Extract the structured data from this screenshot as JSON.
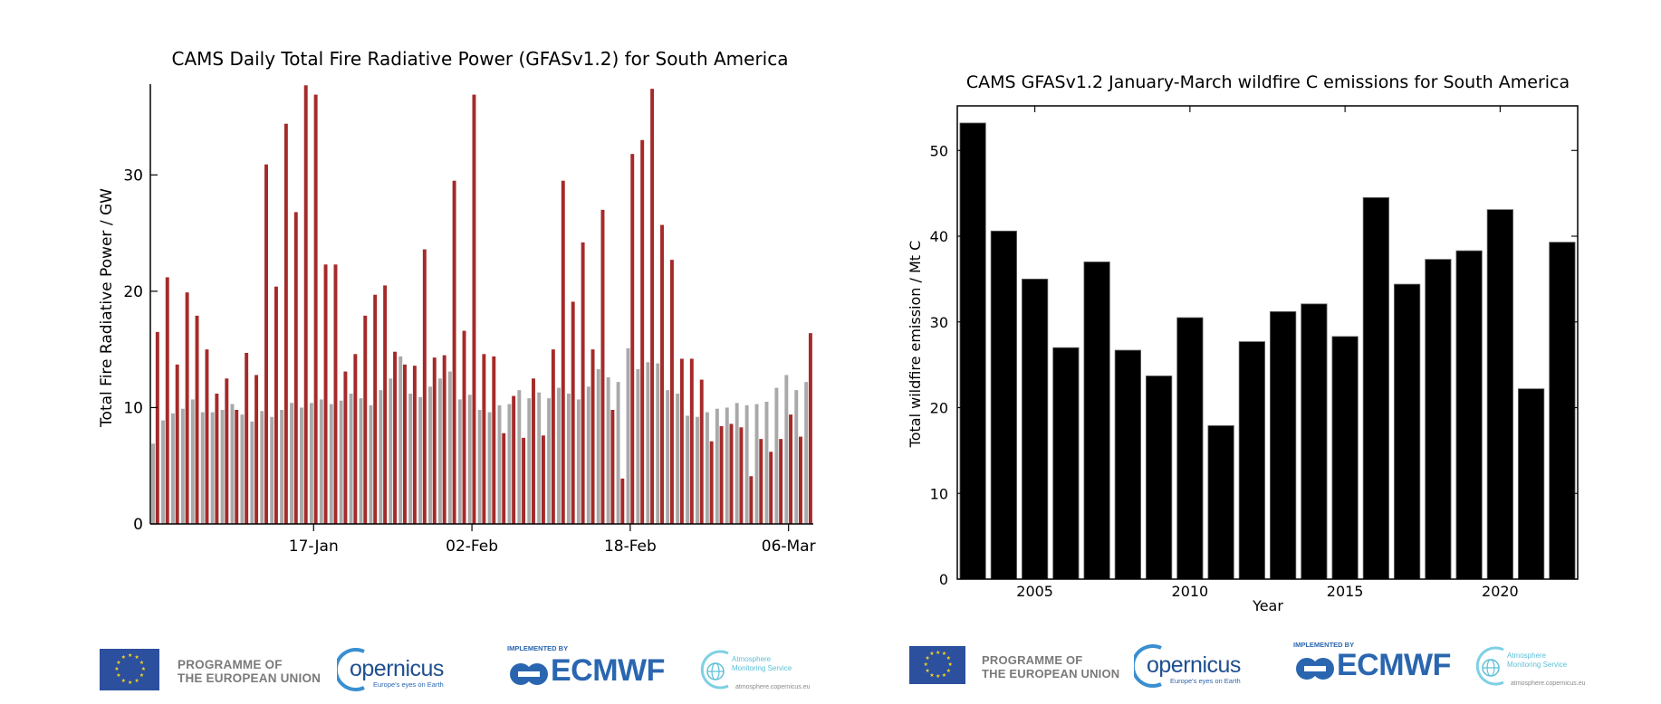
{
  "chart_data": [
    {
      "type": "bar",
      "title": "CAMS Daily Total Fire Radiative Power (GFASv1.2) for South America",
      "xlabel": "",
      "ylabel": "Total Fire Radiative Power / GW",
      "ylim": [
        0,
        37.8
      ],
      "yticks": [
        0,
        10,
        20,
        30
      ],
      "xtick_labels": [
        {
          "day": 17,
          "label": "17-Jan"
        },
        {
          "day": 33,
          "label": "02-Feb"
        },
        {
          "day": 49,
          "label": "18-Feb"
        },
        {
          "day": 65,
          "label": "06-Mar"
        }
      ],
      "grid": false,
      "x_start_day": 1,
      "series": [
        {
          "name": "mean",
          "color": "#a9a9a9",
          "values": [
            6.9,
            8.9,
            9.5,
            9.9,
            10.7,
            9.6,
            9.6,
            9.8,
            10.3,
            9.4,
            8.8,
            9.7,
            9.2,
            9.8,
            10.4,
            10.0,
            10.4,
            10.7,
            10.3,
            10.6,
            11.2,
            10.8,
            10.2,
            11.5,
            12.5,
            14.4,
            11.2,
            10.9,
            11.8,
            12.5,
            13.1,
            10.7,
            11.1,
            9.8,
            9.6,
            10.2,
            10.3,
            11.5,
            10.8,
            11.3,
            10.8,
            11.7,
            11.2,
            10.7,
            11.8,
            13.3,
            12.6,
            12.2,
            15.1,
            13.3,
            13.9,
            13.8,
            11.5,
            11.2,
            9.3,
            9.2,
            9.6,
            9.9,
            10.0,
            10.4,
            10.2,
            10.3,
            10.5,
            11.7,
            12.8,
            11.5,
            12.2
          ]
        },
        {
          "name": "current",
          "color": "#a52a2a",
          "values": [
            16.5,
            21.2,
            13.7,
            19.9,
            17.9,
            15.0,
            11.2,
            12.5,
            9.8,
            14.7,
            12.8,
            30.9,
            20.4,
            34.4,
            26.8,
            37.7,
            36.9,
            22.3,
            22.3,
            13.1,
            14.6,
            17.9,
            19.7,
            20.5,
            14.8,
            13.7,
            13.6,
            23.6,
            14.3,
            14.5,
            29.5,
            16.6,
            36.9,
            14.6,
            14.4,
            7.8,
            11.0,
            7.4,
            12.5,
            7.6,
            15.0,
            29.5,
            19.1,
            24.2,
            15.0,
            27.0,
            9.8,
            3.9,
            31.8,
            33.0,
            37.4,
            25.7,
            22.7,
            14.2,
            14.2,
            12.4,
            7.1,
            8.4,
            8.6,
            8.3,
            4.1,
            7.3,
            6.2,
            7.3,
            9.4,
            7.5,
            16.4
          ]
        }
      ]
    },
    {
      "type": "bar",
      "title": "CAMS GFASv1.2 January-March wildfire C emissions for South America",
      "xlabel": "Year",
      "ylabel": "Total wildfire emission / Mt C",
      "ylim": [
        0,
        55.2
      ],
      "yticks": [
        0,
        10,
        20,
        30,
        40,
        50
      ],
      "xticks": [
        2005,
        2010,
        2015,
        2020
      ],
      "grid": false,
      "categories": [
        2003,
        2004,
        2005,
        2006,
        2007,
        2008,
        2009,
        2010,
        2011,
        2012,
        2013,
        2014,
        2015,
        2016,
        2017,
        2018,
        2019,
        2020,
        2021,
        2022
      ],
      "values": [
        53.2,
        40.6,
        35.0,
        27.0,
        37.0,
        26.7,
        23.7,
        30.5,
        17.9,
        27.7,
        31.2,
        32.1,
        28.3,
        44.5,
        34.4,
        37.3,
        38.3,
        43.1,
        22.2,
        39.3
      ],
      "color": "#000000"
    }
  ],
  "footer": {
    "programme_line1": "PROGRAMME OF",
    "programme_line2": "THE EUROPEAN UNION",
    "copernicus": "opernicus",
    "copernicus_tagline": "Europe's eyes on Earth",
    "implemented_by": "IMPLEMENTED BY",
    "ecmwf": "ECMWF",
    "cams_line1": "Atmosphere",
    "cams_line2": "Monitoring Service",
    "cams_url": "atmosphere.copernicus.eu"
  }
}
